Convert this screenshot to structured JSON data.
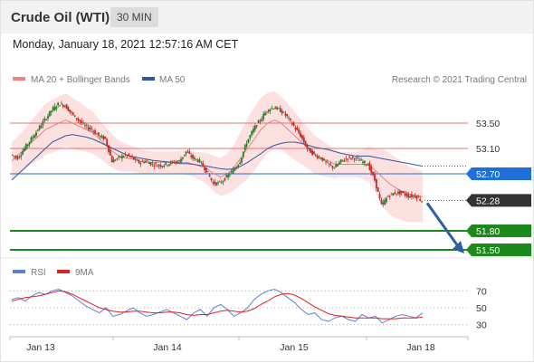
{
  "header": {
    "title": "Crude Oil (WTI)",
    "timeframe": "30 MIN",
    "datetime": "Monday, January 18, 2021 12:57:16 AM CET"
  },
  "legend": {
    "ma20_bb": "MA 20 + Bollinger Bands",
    "ma50": "MA 50",
    "copyright": "Research © 2021 Trading Central",
    "rsi": "RSI",
    "rsi_ma": "9MA"
  },
  "colors": {
    "ma20": "#f08080",
    "bands_fill": "#fde0e0",
    "ma50": "#2e5a9c",
    "up_candle": "#2e7d32",
    "down_candle": "#c62828",
    "resistance": "#e57373",
    "support": "#1b8a1b",
    "pivot": "#1e6fd9",
    "last_price": "#333333",
    "arrow": "#2c5f9e",
    "rsi": "#5b7fd6",
    "rsi_ma": "#e02020"
  },
  "chart_data": [
    {
      "type": "candlestick",
      "x_labels": [
        "Jan 13",
        "Jan 14",
        "Jan 15",
        "Jan 18"
      ],
      "ylim": [
        51.4,
        54.0
      ],
      "price_path": [
        53.0,
        52.95,
        53.1,
        53.25,
        53.4,
        53.55,
        53.7,
        53.8,
        53.78,
        53.65,
        53.55,
        53.45,
        53.4,
        53.3,
        53.25,
        52.9,
        52.95,
        53.0,
        52.95,
        52.88,
        52.9,
        52.85,
        52.83,
        52.85,
        52.88,
        52.9,
        53.05,
        52.95,
        52.9,
        52.75,
        52.55,
        52.55,
        52.65,
        52.75,
        52.9,
        53.2,
        53.4,
        53.55,
        53.7,
        53.75,
        53.7,
        53.6,
        53.45,
        53.3,
        53.1,
        53.0,
        52.95,
        52.85,
        52.8,
        52.9,
        52.95,
        52.95,
        52.9,
        52.85,
        52.6,
        52.2,
        52.35,
        52.4,
        52.4,
        52.35,
        52.35,
        52.28
      ],
      "ma20_path": [
        52.9,
        53.0,
        53.1,
        53.2,
        53.3,
        53.4,
        53.45,
        53.5,
        53.55,
        53.5,
        53.45,
        53.4,
        53.35,
        53.25,
        53.15,
        53.05,
        52.98,
        52.95,
        52.93,
        52.9,
        52.88,
        52.88,
        52.88,
        52.88,
        52.88,
        52.88,
        52.88,
        52.85,
        52.82,
        52.78,
        52.7,
        52.65,
        52.7,
        52.8,
        52.95,
        53.1,
        53.25,
        53.4,
        53.5,
        53.55,
        53.5,
        53.4,
        53.3,
        53.2,
        53.1,
        53.0,
        52.95,
        52.9,
        52.85,
        52.85,
        52.85,
        52.85,
        52.85,
        52.85,
        52.75,
        52.65,
        52.55,
        52.48,
        52.42,
        52.38,
        52.36,
        52.34
      ],
      "ma50_path": [
        52.6,
        52.7,
        52.8,
        52.9,
        53.0,
        53.1,
        53.2,
        53.25,
        53.3,
        53.32,
        53.3,
        53.28,
        53.25,
        53.2,
        53.15,
        53.1,
        53.05,
        53.0,
        52.97,
        52.95,
        52.93,
        52.91,
        52.9,
        52.89,
        52.88,
        52.86,
        52.86,
        52.85,
        52.83,
        52.82,
        52.8,
        52.78,
        52.77,
        52.78,
        52.82,
        52.88,
        52.95,
        53.02,
        53.1,
        53.15,
        53.18,
        53.2,
        53.2,
        53.18,
        53.15,
        53.12,
        53.1,
        53.08,
        53.05,
        53.02,
        53.0,
        52.98,
        52.98,
        52.98,
        52.96,
        52.94,
        52.92,
        52.9,
        52.88,
        52.86,
        52.84,
        52.82
      ],
      "band_width": [
        0.3,
        0.3,
        0.32,
        0.35,
        0.38,
        0.4,
        0.42,
        0.42,
        0.42,
        0.4,
        0.38,
        0.35,
        0.33,
        0.3,
        0.28,
        0.26,
        0.24,
        0.22,
        0.2,
        0.19,
        0.18,
        0.17,
        0.17,
        0.17,
        0.17,
        0.18,
        0.2,
        0.2,
        0.22,
        0.25,
        0.28,
        0.3,
        0.32,
        0.36,
        0.42,
        0.48,
        0.5,
        0.5,
        0.48,
        0.45,
        0.42,
        0.4,
        0.38,
        0.35,
        0.32,
        0.3,
        0.28,
        0.25,
        0.22,
        0.2,
        0.2,
        0.2,
        0.22,
        0.28,
        0.35,
        0.45,
        0.48,
        0.48,
        0.46,
        0.44,
        0.42,
        0.4
      ],
      "levels": [
        {
          "value": 53.5,
          "label": "53.50",
          "kind": "resistance"
        },
        {
          "value": 53.1,
          "label": "53.10",
          "kind": "resistance"
        },
        {
          "value": 52.7,
          "label": "52.70",
          "kind": "pivot"
        },
        {
          "value": 52.28,
          "label": "52.28",
          "kind": "last"
        },
        {
          "value": 51.8,
          "label": "51.80",
          "kind": "support"
        },
        {
          "value": 51.5,
          "label": "51.50",
          "kind": "support"
        }
      ],
      "forecast_arrow": {
        "from": 52.28,
        "to": 51.5,
        "direction": "down"
      }
    },
    {
      "type": "line",
      "series_names": [
        "RSI",
        "9MA"
      ],
      "ylim": [
        20,
        80
      ],
      "y_ticks": [
        {
          "value": 70,
          "label": "70"
        },
        {
          "value": 50,
          "label": "50"
        },
        {
          "value": 30,
          "label": "30"
        }
      ],
      "rsi": [
        60,
        62,
        58,
        64,
        68,
        66,
        70,
        72,
        68,
        64,
        58,
        52,
        48,
        44,
        50,
        40,
        42,
        46,
        50,
        44,
        40,
        42,
        45,
        48,
        44,
        40,
        36,
        44,
        48,
        40,
        50,
        54,
        48,
        40,
        44,
        50,
        60,
        66,
        70,
        72,
        68,
        62,
        56,
        48,
        42,
        44,
        36,
        34,
        38,
        40,
        36,
        34,
        42,
        38,
        40,
        32,
        36,
        40,
        42,
        40,
        38,
        44
      ],
      "rsi_ma": [
        58,
        60,
        62,
        63,
        64,
        66,
        68,
        70,
        69,
        66,
        62,
        58,
        54,
        50,
        48,
        46,
        45,
        45,
        46,
        46,
        45,
        44,
        44,
        45,
        45,
        44,
        42,
        41,
        42,
        42,
        44,
        46,
        47,
        46,
        45,
        46,
        49,
        54,
        58,
        63,
        66,
        67,
        65,
        61,
        56,
        51,
        47,
        43,
        41,
        40,
        39,
        38,
        38,
        38,
        38,
        37,
        37,
        37,
        38,
        38,
        38,
        39
      ]
    }
  ]
}
